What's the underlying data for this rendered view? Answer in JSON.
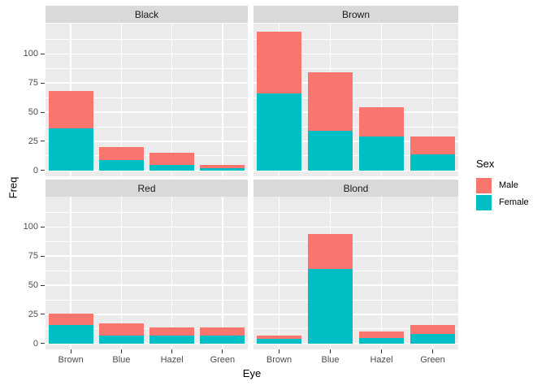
{
  "chart_data": {
    "type": "bar",
    "stacked": true,
    "xlabel": "Eye",
    "ylabel": "Freq",
    "categories": [
      "Brown",
      "Blue",
      "Hazel",
      "Green"
    ],
    "facets": [
      {
        "label": "Black",
        "series": [
          {
            "name": "Male",
            "values": [
              32,
              11,
              10,
              3
            ]
          },
          {
            "name": "Female",
            "values": [
              36,
              9,
              5,
              2
            ]
          }
        ]
      },
      {
        "label": "Brown",
        "series": [
          {
            "name": "Male",
            "values": [
              53,
              50,
              25,
              15
            ]
          },
          {
            "name": "Female",
            "values": [
              66,
              34,
              29,
              14
            ]
          }
        ]
      },
      {
        "label": "Red",
        "series": [
          {
            "name": "Male",
            "values": [
              10,
              10,
              7,
              7
            ]
          },
          {
            "name": "Female",
            "values": [
              16,
              7,
              7,
              7
            ]
          }
        ]
      },
      {
        "label": "Blond",
        "series": [
          {
            "name": "Male",
            "values": [
              3,
              30,
              5,
              8
            ]
          },
          {
            "name": "Female",
            "values": [
              4,
              64,
              5,
              8
            ]
          }
        ]
      }
    ],
    "stack_order_bottom_to_top": [
      "Female",
      "Male"
    ],
    "y_ticks": [
      0,
      25,
      50,
      75,
      100
    ],
    "y_minor_ticks": [
      12.5,
      37.5,
      62.5,
      87.5,
      112.5
    ],
    "ylim": [
      -5,
      126
    ],
    "grid": true,
    "facet_layout": {
      "rows": 2,
      "cols": 2
    },
    "legend": {
      "title": "Sex",
      "position": "right",
      "items": [
        {
          "label": "Male",
          "color": "#F8766D"
        },
        {
          "label": "Female",
          "color": "#00BFC4"
        }
      ]
    },
    "colors": {
      "Male": "#F8766D",
      "Female": "#00BFC4",
      "panel_bg": "#EBEBEB",
      "strip_bg": "#D9D9D9",
      "grid": "#FFFFFF",
      "tick_text": "#4D4D4D",
      "tick_mark": "#333333"
    }
  }
}
